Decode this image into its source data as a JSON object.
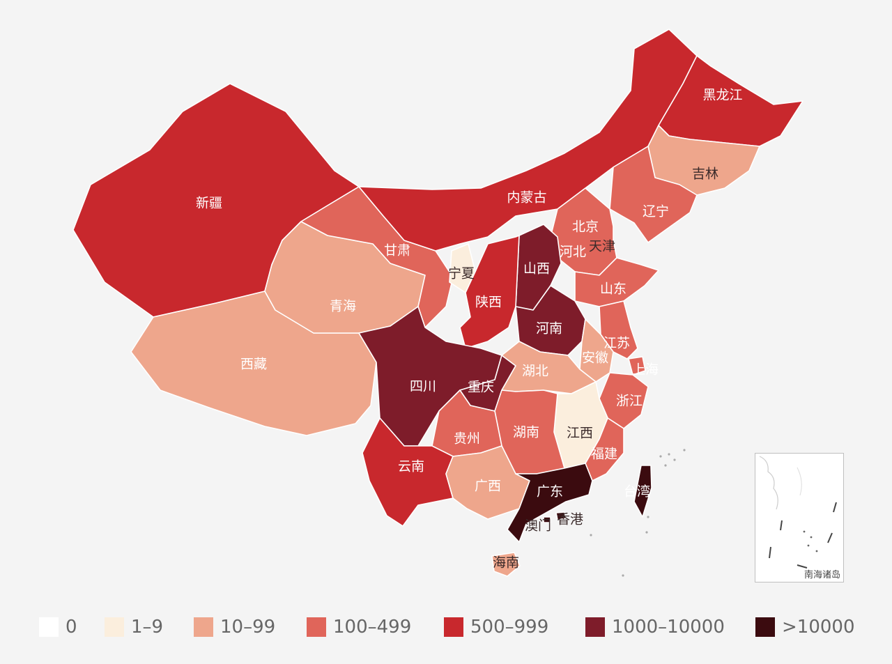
{
  "map": {
    "provinces": [
      {
        "name": "新疆",
        "bin": "500-999"
      },
      {
        "name": "西藏",
        "bin": "10-99"
      },
      {
        "name": "青海",
        "bin": "10-99"
      },
      {
        "name": "甘肃",
        "bin": "100-499"
      },
      {
        "name": "内蒙古",
        "bin": "500-999"
      },
      {
        "name": "黑龙江",
        "bin": "500-999"
      },
      {
        "name": "吉林",
        "bin": "10-99"
      },
      {
        "name": "辽宁",
        "bin": "100-499"
      },
      {
        "name": "北京",
        "bin": "100-499"
      },
      {
        "name": "天津",
        "bin": "100-499"
      },
      {
        "name": "河北",
        "bin": "100-499"
      },
      {
        "name": "宁夏",
        "bin": "1-9"
      },
      {
        "name": "山西",
        "bin": "1000-10000"
      },
      {
        "name": "陕西",
        "bin": "500-999"
      },
      {
        "name": "山东",
        "bin": "100-499"
      },
      {
        "name": "河南",
        "bin": "1000-10000"
      },
      {
        "name": "江苏",
        "bin": "100-499"
      },
      {
        "name": "安徽",
        "bin": "10-99"
      },
      {
        "name": "上海",
        "bin": "100-499"
      },
      {
        "name": "四川",
        "bin": "1000-10000"
      },
      {
        "name": "重庆",
        "bin": "1000-10000"
      },
      {
        "name": "湖北",
        "bin": "10-99"
      },
      {
        "name": "浙江",
        "bin": "100-499"
      },
      {
        "name": "江西",
        "bin": "1-9"
      },
      {
        "name": "湖南",
        "bin": "100-499"
      },
      {
        "name": "贵州",
        "bin": "100-499"
      },
      {
        "name": "福建",
        "bin": "100-499"
      },
      {
        "name": "云南",
        "bin": "500-999"
      },
      {
        "name": "广西",
        "bin": "10-99"
      },
      {
        "name": "广东",
        "bin": ">10000"
      },
      {
        "name": "台湾",
        "bin": ">10000"
      },
      {
        "name": "香港",
        "bin": ">10000"
      },
      {
        "name": "澳门",
        "bin": ">10000"
      },
      {
        "name": "海南",
        "bin": "10-99"
      }
    ],
    "inset_label": "南海诸岛"
  },
  "legend": [
    {
      "label": "0",
      "color": "#ffffff"
    },
    {
      "label": "1–9",
      "color": "#fbeedd"
    },
    {
      "label": "10–99",
      "color": "#eea68c"
    },
    {
      "label": "100–499",
      "color": "#e0655a"
    },
    {
      "label": "500–999",
      "color": "#c8282d"
    },
    {
      "label": "1000–10000",
      "color": "#7e1c2a"
    },
    {
      "label": ">10000",
      "color": "#3b0b0f"
    }
  ],
  "colors": {
    "0": "#ffffff",
    "1-9": "#fbeedd",
    "10-99": "#eea68c",
    "100-499": "#e0655a",
    "500-999": "#c8282d",
    "1000-10000": "#7e1c2a",
    ">10000": "#3b0b0f"
  }
}
